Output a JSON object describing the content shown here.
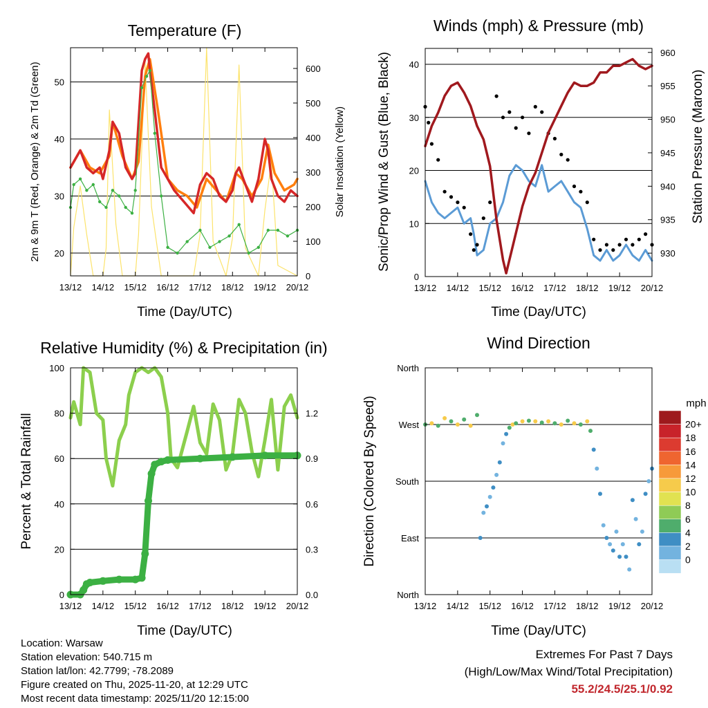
{
  "chart_data": [
    {
      "id": "temperature",
      "type": "line",
      "title": "Temperature (F)",
      "xlabel": "Time (Day/UTC)",
      "ylabel": "2m & 9m T (Red, Orange) & 2m Td (Green)",
      "y2label": "Solar Insolation (Yellow)",
      "categories": [
        "13/12",
        "14/12",
        "15/12",
        "16/12",
        "17/12",
        "18/12",
        "19/12",
        "20/12"
      ],
      "xlim": [
        0,
        7
      ],
      "ylim": [
        16,
        56
      ],
      "y2lim": [
        0,
        660
      ],
      "yticks": [
        20,
        30,
        40,
        50
      ],
      "y2ticks": [
        0,
        100,
        200,
        300,
        400,
        500,
        600
      ],
      "series": [
        {
          "name": "2m T",
          "color": "#d62728",
          "x": [
            0,
            0.1,
            0.3,
            0.5,
            0.7,
            0.9,
            1.0,
            1.2,
            1.3,
            1.5,
            1.7,
            1.9,
            2.0,
            2.2,
            2.3,
            2.4,
            2.45,
            2.6,
            2.8,
            3.0,
            3.2,
            3.5,
            3.8,
            4.0,
            4.2,
            4.4,
            4.6,
            4.8,
            5.0,
            5.1,
            5.2,
            5.4,
            5.6,
            5.8,
            6.0,
            6.1,
            6.2,
            6.4,
            6.6,
            6.8,
            7.0
          ],
          "values": [
            35,
            36,
            38,
            35,
            34,
            35,
            33,
            38,
            43,
            41,
            35,
            33,
            34,
            52,
            54,
            55,
            52,
            45,
            35,
            33,
            31,
            29,
            27,
            32,
            34,
            33,
            30,
            29,
            31,
            34,
            35,
            32,
            29,
            33,
            40,
            38,
            33,
            30,
            29,
            31,
            30
          ]
        },
        {
          "name": "9m T",
          "color": "#ff7f0e",
          "x": [
            0,
            0.3,
            0.6,
            0.9,
            1.2,
            1.3,
            1.6,
            1.9,
            2.1,
            2.3,
            2.45,
            2.7,
            3.0,
            3.3,
            3.6,
            3.9,
            4.2,
            4.5,
            4.8,
            5.1,
            5.3,
            5.6,
            5.9,
            6.1,
            6.3,
            6.6,
            6.9,
            7.0
          ],
          "values": [
            35,
            38,
            35,
            34,
            37,
            43,
            37,
            33,
            36,
            51,
            54,
            45,
            33,
            31,
            30,
            28,
            33,
            31,
            29,
            34,
            33,
            30,
            33,
            39,
            34,
            31,
            32,
            33
          ]
        },
        {
          "name": "2m Td",
          "color": "#3cb043",
          "x": [
            0,
            0.1,
            0.3,
            0.5,
            0.7,
            0.9,
            1.1,
            1.3,
            1.5,
            1.7,
            1.9,
            2.0,
            2.2,
            2.35,
            2.45,
            2.6,
            2.8,
            3.0,
            3.3,
            3.6,
            4.0,
            4.3,
            4.6,
            4.9,
            5.2,
            5.5,
            5.8,
            6.1,
            6.4,
            6.7,
            7.0
          ],
          "values": [
            28,
            32,
            33,
            31,
            32,
            29,
            28,
            31,
            30,
            28,
            27,
            31,
            49,
            51,
            52,
            41,
            30,
            21,
            20,
            22,
            24,
            21,
            22,
            23,
            25,
            20,
            21,
            24,
            24,
            23,
            24
          ]
        },
        {
          "name": "Solar Insolation",
          "color": "#fce36b",
          "axis": "right",
          "x": [
            0,
            0.1,
            0.3,
            0.5,
            0.7,
            1.0,
            1.1,
            1.2,
            1.4,
            1.6,
            2.0,
            2.1,
            2.3,
            2.5,
            2.8,
            3.0,
            3.8,
            4.0,
            4.2,
            4.4,
            4.8,
            5.0,
            5.2,
            5.4,
            5.8,
            6.0,
            6.2,
            6.4,
            7.0
          ],
          "values": [
            0,
            140,
            260,
            120,
            0,
            0,
            80,
            480,
            150,
            0,
            0,
            120,
            620,
            200,
            0,
            0,
            0,
            120,
            660,
            100,
            0,
            110,
            610,
            80,
            0,
            190,
            330,
            30,
            0
          ]
        }
      ]
    },
    {
      "id": "winds",
      "type": "scatter",
      "title": "Winds (mph) & Pressure (mb)",
      "xlabel": "Time (Day/UTC)",
      "ylabel": "Sonic/Prop Wind & Gust (Blue, Black)",
      "y2label": "Station Pressure (Maroon)",
      "categories": [
        "13/12",
        "14/12",
        "15/12",
        "16/12",
        "17/12",
        "18/12",
        "19/12",
        "20/12"
      ],
      "xlim": [
        0,
        7
      ],
      "ylim": [
        0,
        43
      ],
      "y2lim": [
        926.5,
        960.6
      ],
      "yticks": [
        0,
        10,
        20,
        30,
        40
      ],
      "y2ticks": [
        930,
        935,
        940,
        945,
        950,
        955,
        960
      ],
      "series": [
        {
          "name": "Wind",
          "color": "#5b9bd5",
          "x": [
            0,
            0.2,
            0.4,
            0.6,
            0.8,
            1.0,
            1.2,
            1.4,
            1.5,
            1.6,
            1.8,
            2.0,
            2.2,
            2.4,
            2.6,
            2.8,
            3.0,
            3.2,
            3.4,
            3.6,
            3.8,
            4.0,
            4.2,
            4.4,
            4.6,
            4.8,
            5.0,
            5.2,
            5.4,
            5.6,
            5.8,
            6.0,
            6.2,
            6.4,
            6.6,
            6.8,
            7.0
          ],
          "values": [
            18,
            14,
            12,
            11,
            12,
            13,
            10,
            11,
            8,
            4,
            5,
            10,
            11,
            14,
            19,
            21,
            20,
            18,
            17,
            21,
            16,
            17,
            18,
            16,
            14,
            13,
            9,
            4,
            3,
            5,
            3,
            4,
            6,
            4,
            3,
            5,
            3
          ]
        },
        {
          "name": "Gust",
          "color": "#000000",
          "x": [
            0,
            0.1,
            0.2,
            0.4,
            0.6,
            0.8,
            1.0,
            1.2,
            1.4,
            1.5,
            1.6,
            1.8,
            2.0,
            2.2,
            2.4,
            2.6,
            2.8,
            3.0,
            3.2,
            3.4,
            3.6,
            3.8,
            4.0,
            4.2,
            4.4,
            4.6,
            4.8,
            5.0,
            5.2,
            5.4,
            5.6,
            5.8,
            6.0,
            6.2,
            6.4,
            6.6,
            6.8,
            7.0
          ],
          "values": [
            32,
            29,
            25,
            22,
            16,
            15,
            14,
            13,
            8,
            5,
            6,
            11,
            14,
            34,
            30,
            31,
            28,
            30,
            27,
            32,
            31,
            27,
            26,
            23,
            22,
            17,
            16,
            14,
            7,
            5,
            6,
            5,
            6,
            7,
            6,
            7,
            8,
            6
          ]
        },
        {
          "name": "Pressure",
          "color": "#a0191e",
          "axis": "right",
          "x": [
            0,
            0.2,
            0.4,
            0.6,
            0.8,
            1.0,
            1.2,
            1.4,
            1.6,
            1.8,
            2.0,
            2.2,
            2.4,
            2.5,
            2.6,
            2.8,
            3.0,
            3.2,
            3.4,
            3.6,
            3.8,
            4.0,
            4.2,
            4.4,
            4.6,
            4.8,
            5.0,
            5.2,
            5.4,
            5.6,
            5.8,
            6.0,
            6.2,
            6.4,
            6.6,
            6.8,
            7.0
          ],
          "values": [
            946,
            949,
            951,
            953.5,
            955,
            955.5,
            954,
            952,
            949,
            947,
            943,
            935,
            929,
            927,
            929,
            933,
            937,
            940,
            942,
            945,
            948,
            950,
            952,
            954,
            955.5,
            955,
            955,
            955.5,
            957,
            957,
            958,
            958,
            958.5,
            959,
            958,
            957.5,
            958
          ]
        }
      ]
    },
    {
      "id": "humidity",
      "type": "line",
      "title": "Relative Humidity (%) & Precipitation (in)",
      "xlabel": "Time (Day/UTC)",
      "ylabel": "Percent & Total Rainfall",
      "categories": [
        "13/12",
        "14/12",
        "15/12",
        "16/12",
        "17/12",
        "18/12",
        "19/12",
        "20/12"
      ],
      "xlim": [
        0,
        7
      ],
      "ylim": [
        0,
        100
      ],
      "y2lim": [
        0,
        1.5
      ],
      "yticks": [
        0,
        20,
        40,
        60,
        80,
        100
      ],
      "y2ticks": [
        "0.0",
        "0.3",
        "0.6",
        "0.9",
        "1.2"
      ],
      "series": [
        {
          "name": "Relative Humidity",
          "color": "#8ccf4d",
          "x": [
            0,
            0.1,
            0.3,
            0.4,
            0.6,
            0.8,
            1.0,
            1.1,
            1.3,
            1.5,
            1.7,
            1.8,
            2.0,
            2.2,
            2.4,
            2.6,
            2.8,
            3.0,
            3.1,
            3.3,
            3.6,
            3.8,
            4.0,
            4.2,
            4.4,
            4.6,
            4.8,
            5.0,
            5.2,
            5.4,
            5.6,
            5.8,
            6.0,
            6.2,
            6.4,
            6.6,
            6.8,
            7.0
          ],
          "values": [
            78,
            85,
            75,
            100,
            98,
            80,
            77,
            60,
            48,
            68,
            75,
            88,
            98,
            100,
            98,
            100,
            96,
            80,
            60,
            56,
            72,
            83,
            67,
            62,
            84,
            77,
            55,
            62,
            86,
            80,
            63,
            52,
            68,
            86,
            55,
            83,
            88,
            78
          ]
        },
        {
          "name": "Total Rainfall",
          "color": "#3cb043",
          "axis": "right",
          "x": [
            0,
            0.3,
            0.4,
            0.5,
            0.6,
            1.0,
            1.5,
            2.0,
            2.2,
            2.3,
            2.4,
            2.5,
            2.6,
            2.8,
            3.0,
            4.0,
            5.0,
            6.0,
            7.0
          ],
          "values": [
            0,
            0,
            0.03,
            0.07,
            0.08,
            0.09,
            0.1,
            0.1,
            0.11,
            0.27,
            0.62,
            0.8,
            0.86,
            0.88,
            0.89,
            0.9,
            0.91,
            0.92,
            0.92
          ]
        }
      ]
    },
    {
      "id": "wind_direction",
      "type": "scatter",
      "title": "Wind Direction",
      "xlabel": "Time (Day/UTC)",
      "ylabel": "Direction (Colored By Speed)",
      "categories": [
        "13/12",
        "14/12",
        "15/12",
        "16/12",
        "17/12",
        "18/12",
        "19/12",
        "20/12"
      ],
      "xlim": [
        0,
        7
      ],
      "ylim": [
        0,
        360
      ],
      "ytick_labels": [
        "North",
        "East",
        "South",
        "West",
        "North"
      ],
      "series": [
        {
          "name": "Direction",
          "x": [
            0,
            0.2,
            0.4,
            0.6,
            0.8,
            1.0,
            1.2,
            1.4,
            1.6,
            1.7,
            1.8,
            1.9,
            2.0,
            2.1,
            2.2,
            2.3,
            2.4,
            2.5,
            2.6,
            2.7,
            2.8,
            3.0,
            3.2,
            3.4,
            3.6,
            3.8,
            4.0,
            4.2,
            4.4,
            4.6,
            4.8,
            5.0,
            5.1,
            5.2,
            5.3,
            5.4,
            5.5,
            5.6,
            5.7,
            5.8,
            5.9,
            6.0,
            6.1,
            6.2,
            6.3,
            6.4,
            6.5,
            6.6,
            6.7,
            6.8,
            6.9,
            7.0
          ],
          "values": [
            270,
            272,
            268,
            280,
            275,
            270,
            278,
            268,
            285,
            90,
            130,
            140,
            155,
            170,
            190,
            210,
            240,
            255,
            265,
            270,
            272,
            275,
            276,
            275,
            273,
            275,
            272,
            270,
            276,
            272,
            270,
            275,
            260,
            230,
            200,
            160,
            110,
            90,
            80,
            70,
            100,
            60,
            80,
            60,
            40,
            150,
            120,
            80,
            100,
            160,
            180,
            200
          ]
        }
      ],
      "legend": {
        "title": "mph",
        "labels": [
          "20+",
          "18",
          "16",
          "14",
          "12",
          "10",
          "8",
          "6",
          "4",
          "2",
          "0"
        ]
      }
    }
  ],
  "footer": {
    "location": "Location: Warsaw",
    "elevation": "Station elevation: 540.715 m",
    "latlon": "Station lat/lon: 42.7799; -78.2089",
    "created": "Figure created on Thu, 2025-11-20, at 12:29 UTC",
    "recent": "Most recent data timestamp: 2025/11/20 12:15:00",
    "extremes_title": "Extremes For Past 7 Days",
    "extremes_subtitle": "(High/Low/Max Wind/Total Precipitation)",
    "extremes_values": "55.2/24.5/25.1/0.92"
  },
  "colors": {
    "legend_scale": [
      "#9e1a1d",
      "#c8232a",
      "#dc3b30",
      "#ef6530",
      "#f79a3a",
      "#f6cb4b",
      "#e1e251",
      "#8fcb56",
      "#4fad6c",
      "#3f8ec4",
      "#73b3df",
      "#b9dff3"
    ]
  }
}
